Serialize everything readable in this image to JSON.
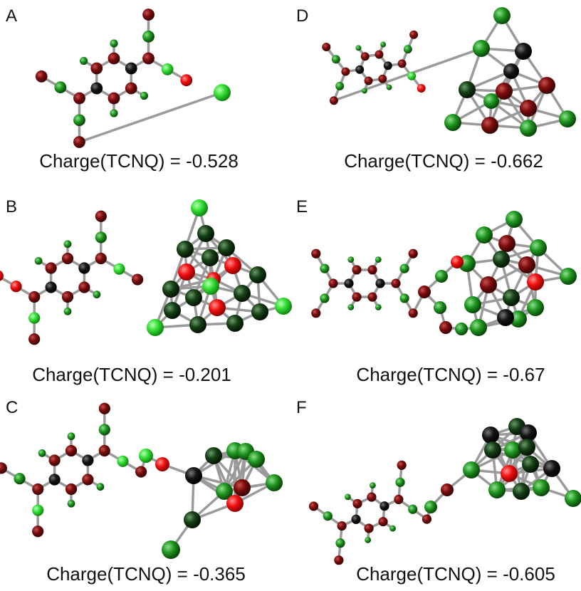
{
  "panels": [
    {
      "label": "A",
      "caption": "Charge(TCNQ) = -0.528"
    },
    {
      "label": "D",
      "caption": "Charge(TCNQ) = -0.662"
    },
    {
      "label": "B",
      "caption": "Charge(TCNQ) = -0.201"
    },
    {
      "label": "E",
      "caption": "Charge(TCNQ) = -0.67"
    },
    {
      "label": "C",
      "caption": "Charge(TCNQ) = -0.365"
    },
    {
      "label": "F",
      "caption": "Charge(TCNQ) = -0.605"
    }
  ]
}
